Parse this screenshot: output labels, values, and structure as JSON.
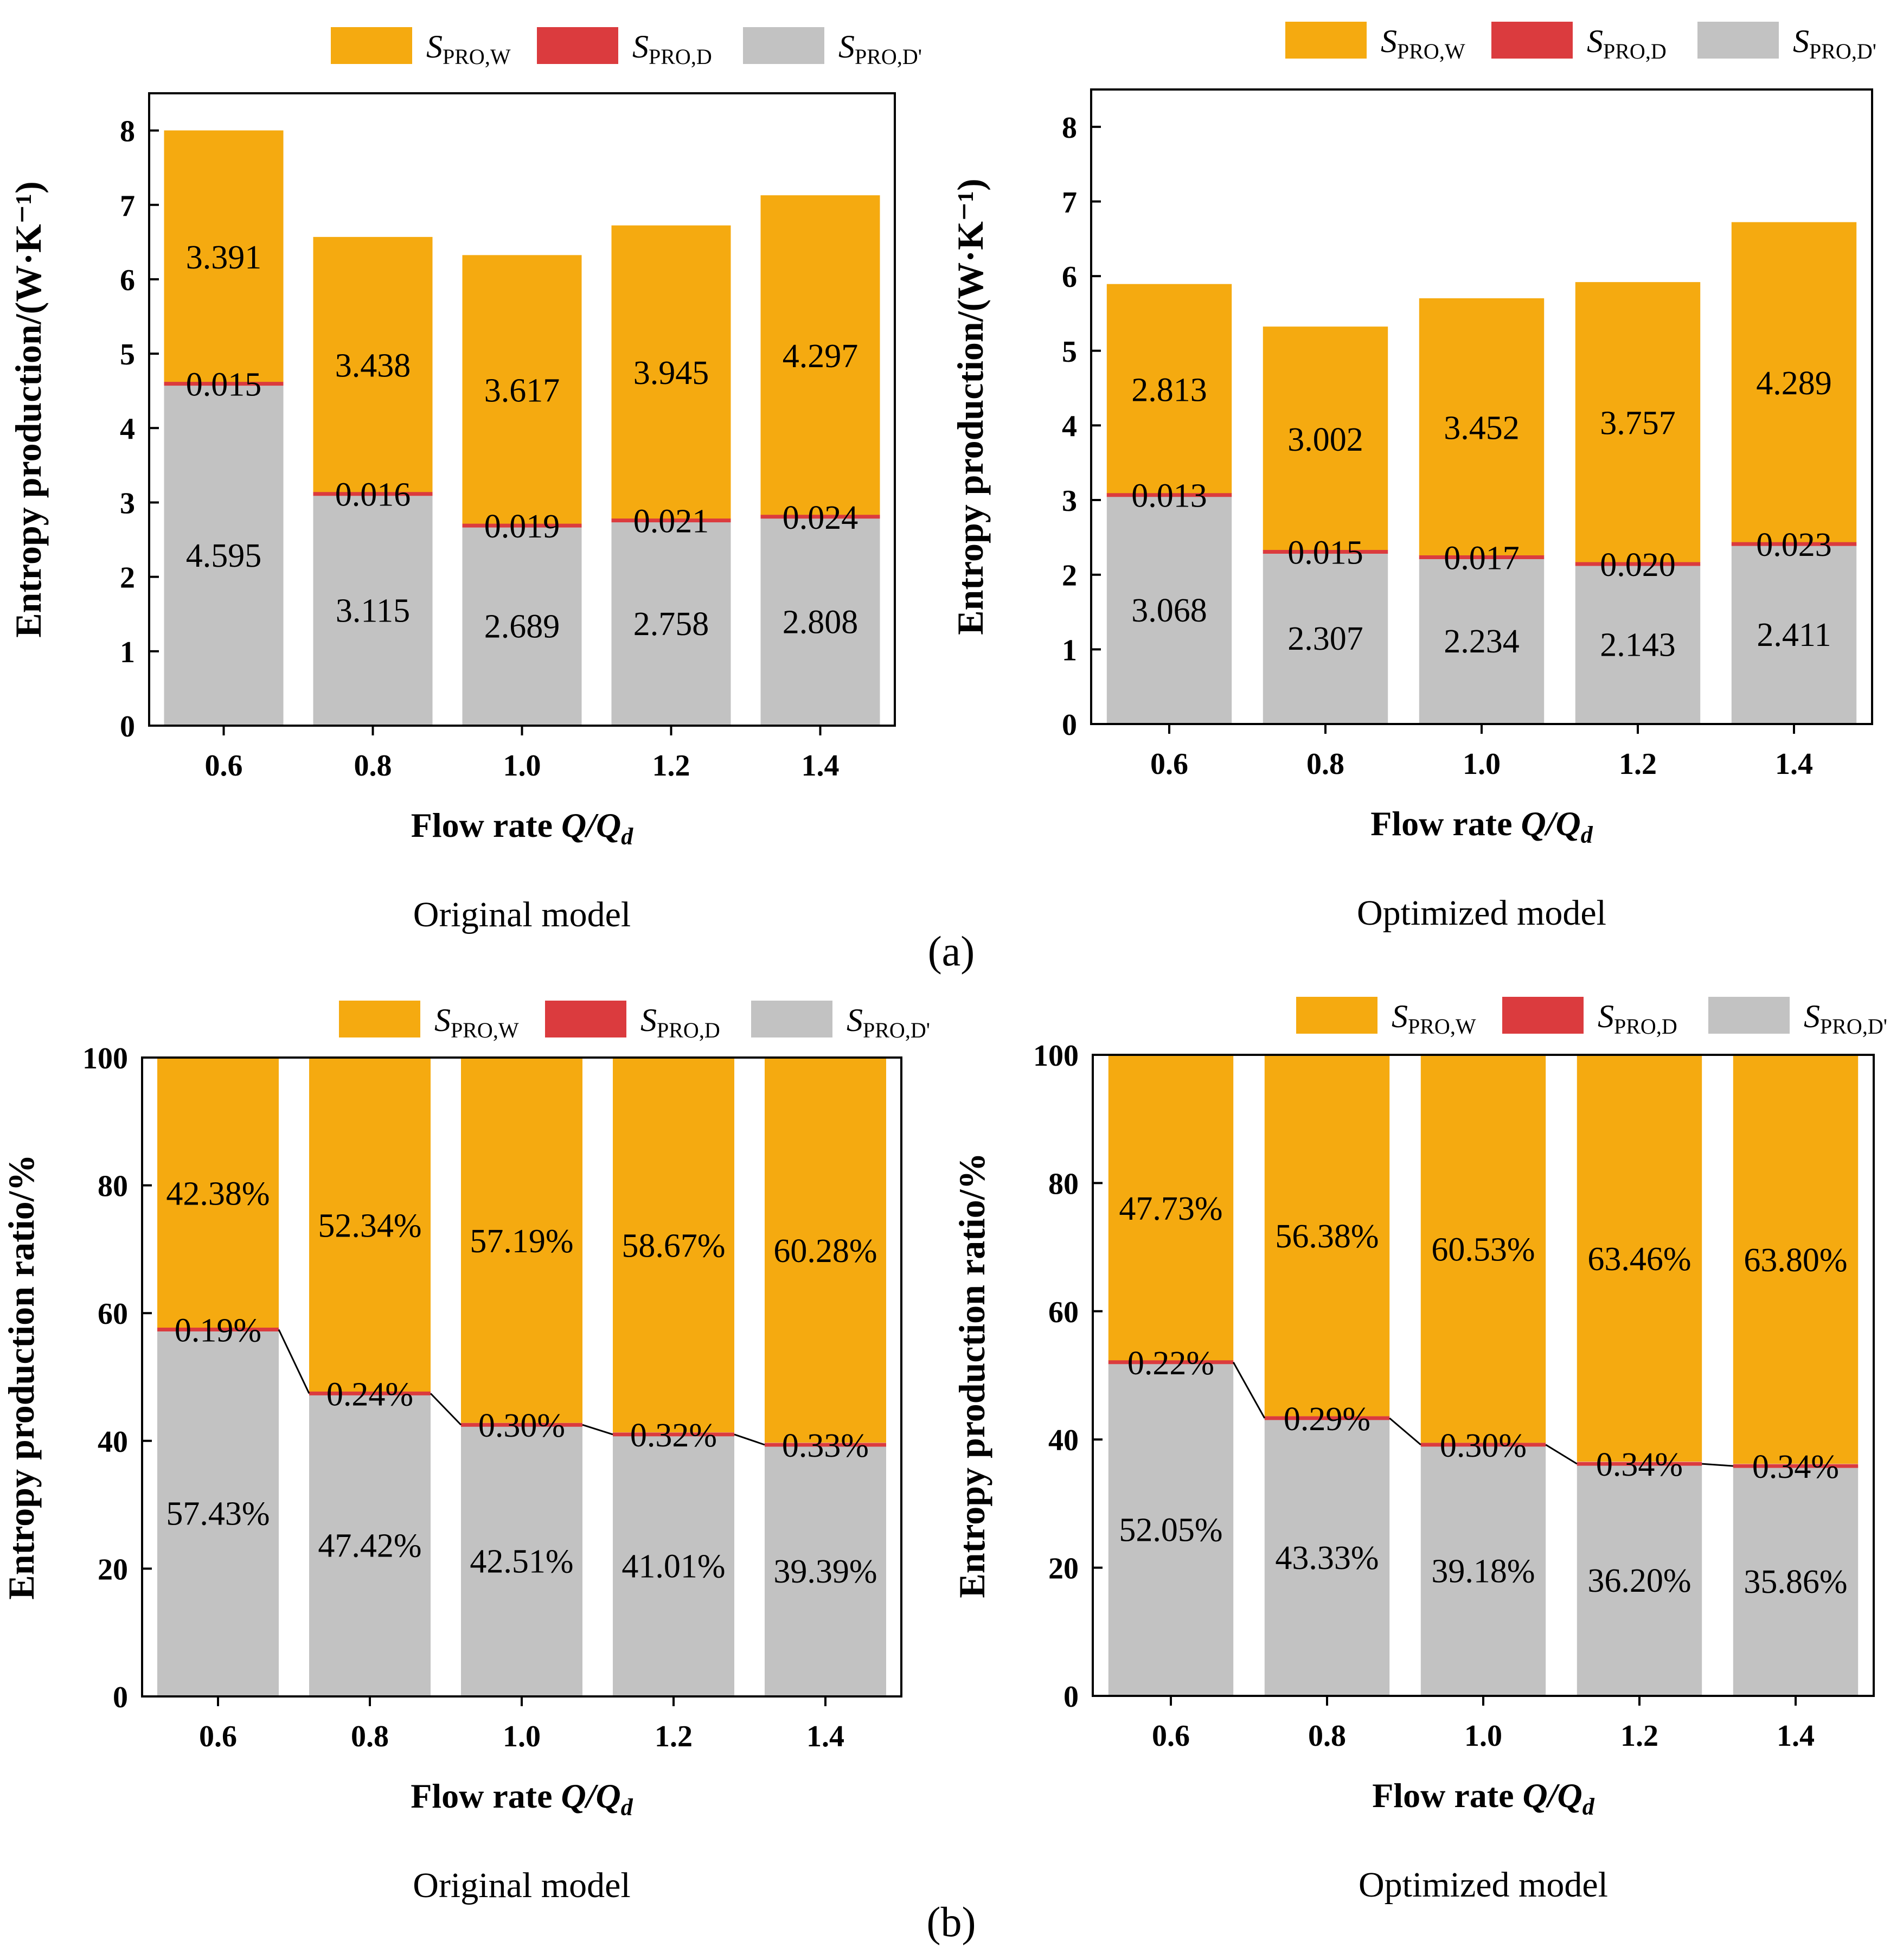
{
  "figure": {
    "captions": [
      "(a)",
      "(b)"
    ],
    "model_labels": [
      "Original model",
      "Optimized model"
    ]
  },
  "legend": [
    {
      "symbol": "S",
      "subscript": "PRO,W",
      "color": "#F5AA10"
    },
    {
      "symbol": "S",
      "subscript": "PRO,D",
      "color": "#DB3B3E"
    },
    {
      "symbol": "S",
      "subscript": "PRO,D'",
      "color": "#C2C2C2"
    }
  ],
  "colors": {
    "wall": "#F5AA10",
    "direct": "#DB3B3E",
    "dprime": "#C2C2C2"
  },
  "chart_data": [
    {
      "type": "bar",
      "stacked": true,
      "panel": "(a)",
      "title": "Original model",
      "xlabel": "Flow rate Q/Qd",
      "ylabel": "Entropy production/(W·K⁻¹)",
      "ylim": [
        0,
        8.5
      ],
      "yticks": [
        0,
        1,
        2,
        3,
        4,
        5,
        6,
        7,
        8
      ],
      "categories": [
        "0.6",
        "0.8",
        "1.0",
        "1.2",
        "1.4"
      ],
      "series": [
        {
          "name": "SPRO,D'",
          "values": [
            4.595,
            3.115,
            2.689,
            2.758,
            2.808
          ],
          "labels": [
            "4.595",
            "3.115",
            "2.689",
            "2.758",
            "2.808"
          ]
        },
        {
          "name": "SPRO,D",
          "values": [
            0.015,
            0.016,
            0.019,
            0.021,
            0.024
          ],
          "labels": [
            "0.015",
            "0.016",
            "0.019",
            "0.021",
            "0.024"
          ]
        },
        {
          "name": "SPRO,W",
          "values": [
            3.391,
            3.438,
            3.617,
            3.945,
            4.297
          ],
          "labels": [
            "3.391",
            "3.438",
            "3.617",
            "3.945",
            "4.297"
          ]
        }
      ]
    },
    {
      "type": "bar",
      "stacked": true,
      "panel": "(a)",
      "title": "Optimized model",
      "xlabel": "Flow rate Q/Qd",
      "ylabel": "Entropy production/(W·K⁻¹)",
      "ylim": [
        0,
        8.5
      ],
      "yticks": [
        0,
        1,
        2,
        3,
        4,
        5,
        6,
        7,
        8
      ],
      "categories": [
        "0.6",
        "0.8",
        "1.0",
        "1.2",
        "1.4"
      ],
      "series": [
        {
          "name": "SPRO,D'",
          "values": [
            3.068,
            2.307,
            2.234,
            2.143,
            2.411
          ],
          "labels": [
            "3.068",
            "2.307",
            "2.234",
            "2.143",
            "2.411"
          ]
        },
        {
          "name": "SPRO,D",
          "values": [
            0.013,
            0.015,
            0.017,
            0.02,
            0.023
          ],
          "labels": [
            "0.013",
            "0.015",
            "0.017",
            "0.020",
            "0.023"
          ]
        },
        {
          "name": "SPRO,W",
          "values": [
            2.813,
            3.002,
            3.452,
            3.757,
            4.289
          ],
          "labels": [
            "2.813",
            "3.002",
            "3.452",
            "3.757",
            "4.289"
          ]
        }
      ]
    },
    {
      "type": "bar",
      "stacked": true,
      "panel": "(b)",
      "title": "Original model",
      "xlabel": "Flow rate Q/Qd",
      "ylabel": "Entropy production ratio/%",
      "ylim": [
        0,
        100
      ],
      "yticks": [
        0,
        20,
        40,
        60,
        80,
        100
      ],
      "categories": [
        "0.6",
        "0.8",
        "1.0",
        "1.2",
        "1.4"
      ],
      "series": [
        {
          "name": "SPRO,D'",
          "values": [
            57.43,
            47.42,
            42.51,
            41.01,
            39.39
          ],
          "labels": [
            "57.43%",
            "47.42%",
            "42.51%",
            "41.01%",
            "39.39%"
          ]
        },
        {
          "name": "SPRO,D",
          "values": [
            0.19,
            0.24,
            0.3,
            0.32,
            0.33
          ],
          "labels": [
            "0.19%",
            "0.24%",
            "0.30%",
            "0.32%",
            "0.33%"
          ]
        },
        {
          "name": "SPRO,W",
          "values": [
            42.38,
            52.34,
            57.19,
            58.67,
            60.28
          ],
          "labels": [
            "42.38%",
            "52.34%",
            "57.19%",
            "58.67%",
            "60.28%"
          ]
        }
      ]
    },
    {
      "type": "bar",
      "stacked": true,
      "panel": "(b)",
      "title": "Optimized model",
      "xlabel": "Flow rate Q/Qd",
      "ylabel": "Entropy production ratio/%",
      "ylim": [
        0,
        100
      ],
      "yticks": [
        0,
        20,
        40,
        60,
        80,
        100
      ],
      "categories": [
        "0.6",
        "0.8",
        "1.0",
        "1.2",
        "1.4"
      ],
      "series": [
        {
          "name": "SPRO,D'",
          "values": [
            52.05,
            43.33,
            39.18,
            36.2,
            35.86
          ],
          "labels": [
            "52.05%",
            "43.33%",
            "39.18%",
            "36.20%",
            "35.86%"
          ]
        },
        {
          "name": "SPRO,D",
          "values": [
            0.22,
            0.29,
            0.3,
            0.34,
            0.34
          ],
          "labels": [
            "0.22%",
            "0.29%",
            "0.30%",
            "0.34%",
            "0.34%"
          ]
        },
        {
          "name": "SPRO,W",
          "values": [
            47.73,
            56.38,
            60.53,
            63.46,
            63.8
          ],
          "labels": [
            "47.73%",
            "56.38%",
            "60.53%",
            "63.46%",
            "63.80%"
          ]
        }
      ]
    }
  ]
}
